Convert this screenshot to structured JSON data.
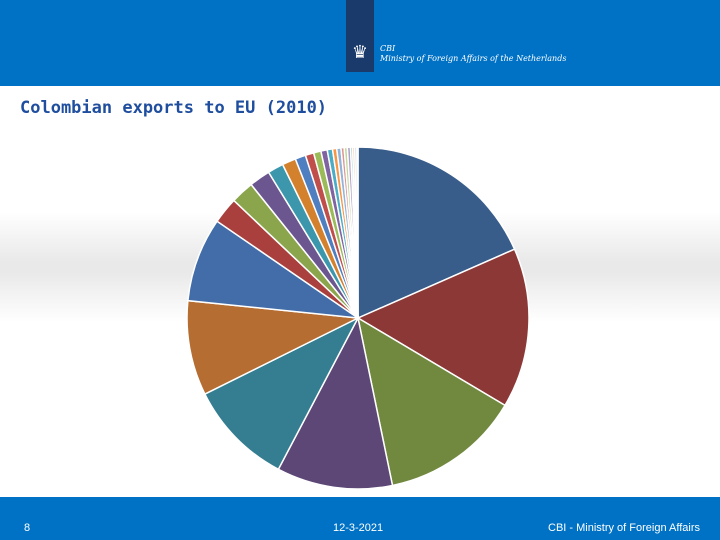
{
  "header": {
    "logo_line1": "CBI",
    "logo_line2": "Ministry of Foreign Affairs of the Netherlands",
    "logo_icon": "crest-icon"
  },
  "title": "Colombian exports to EU (2010)",
  "footer": {
    "page": "8",
    "date": "12-3-2021",
    "org": "CBI - Ministry of Foreign Affairs"
  },
  "chart_data": {
    "type": "pie",
    "title": "Colombian exports to EU (2010)",
    "legend": "none",
    "values": [
      18.5,
      15.2,
      13.3,
      11.0,
      10.0,
      9.0,
      8.0,
      2.5,
      2.2,
      2.0,
      1.5,
      1.3,
      1.0,
      0.8,
      0.7,
      0.6,
      0.5,
      0.4,
      0.4,
      0.3,
      0.3,
      0.3,
      0.2,
      0.2,
      0.2,
      0.1
    ],
    "colors": [
      "#385d8a",
      "#8c3836",
      "#71893f",
      "#5c4776",
      "#357d91",
      "#b66d31",
      "#426da9",
      "#a9403d",
      "#8aa54b",
      "#6b5690",
      "#3d97ac",
      "#d4812d",
      "#4f7fc0",
      "#c04f4c",
      "#9bbb59",
      "#8064a2",
      "#4bacc6",
      "#f79646",
      "#95b3d7",
      "#d99694",
      "#c3d69b",
      "#b2a1c7",
      "#92cddc",
      "#fac090",
      "#bbcbe4",
      "#dfa7a6"
    ]
  }
}
